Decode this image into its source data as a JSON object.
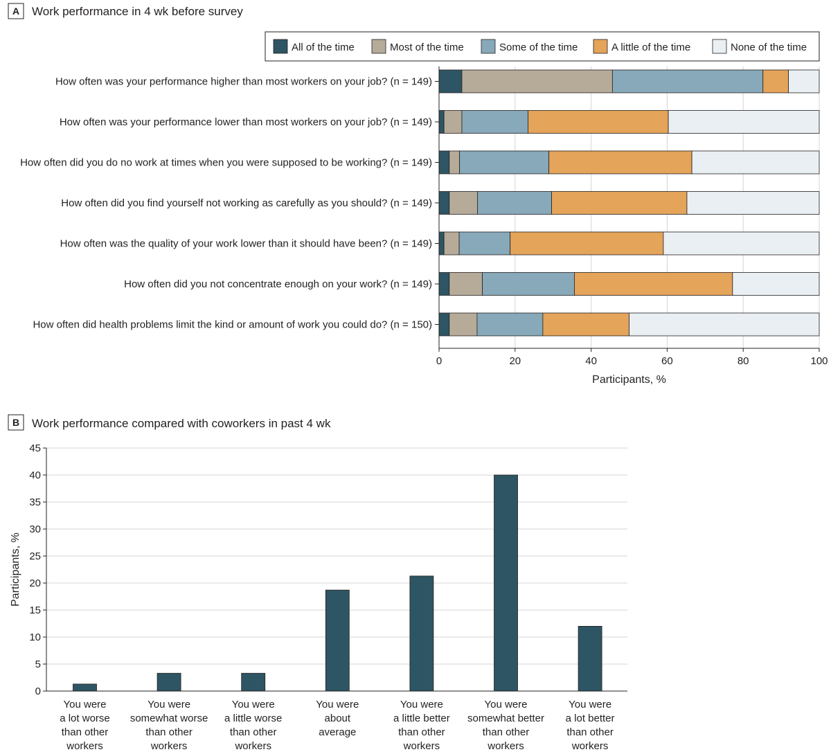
{
  "chart_data": [
    {
      "type": "bar",
      "orientation": "horizontal-stacked",
      "panel_letter": "A",
      "title": "Work performance in 4 wk before survey",
      "xlabel": "Participants, %",
      "xlim": [
        0,
        100
      ],
      "xticks": [
        "0",
        "20",
        "40",
        "60",
        "80",
        "100"
      ],
      "legend_position": "top-right",
      "categories": [
        "How often was your performance higher than most workers on your job? (n = 149)",
        "How often was your performance lower than most workers on your job? (n = 149)",
        "How often did you do no work at times when you were supposed to be working? (n = 149)",
        "How often did you find yourself not working as carefully as you should? (n = 149)",
        "How often was the quality of your work lower than it should have been? (n = 149)",
        "How often did you not concentrate enough on your work? (n = 149)",
        "How often did health problems limit the kind or amount of work you could do? (n = 150)"
      ],
      "series": [
        {
          "name": "All of the time",
          "color": "#2e5563",
          "values": [
            6.0,
            1.3,
            2.7,
            2.7,
            1.3,
            2.7,
            2.7
          ]
        },
        {
          "name": "Most of the time",
          "color": "#b6ab99",
          "values": [
            39.6,
            4.7,
            2.7,
            7.4,
            4.0,
            8.7,
            7.3
          ]
        },
        {
          "name": "Some of the time",
          "color": "#87a9b9",
          "values": [
            39.6,
            17.4,
            23.5,
            19.5,
            13.4,
            24.2,
            17.3
          ]
        },
        {
          "name": "A little of the time",
          "color": "#e4a45a",
          "values": [
            6.7,
            36.9,
            37.6,
            35.6,
            40.3,
            41.6,
            22.7
          ]
        },
        {
          "name": "None of the time",
          "color": "#e9eff3",
          "values": [
            8.1,
            39.7,
            33.5,
            34.8,
            41.0,
            22.8,
            50.0
          ]
        }
      ]
    },
    {
      "type": "bar",
      "panel_letter": "B",
      "title": "Work performance compared with coworkers in past 4 wk",
      "ylabel": "Participants, %",
      "ylim": [
        0,
        45
      ],
      "yticks": [
        "0",
        "5",
        "10",
        "15",
        "20",
        "25",
        "30",
        "35",
        "40",
        "45"
      ],
      "color": "#2e5563",
      "categories": [
        [
          "You were",
          "a lot worse",
          "than other",
          "workers"
        ],
        [
          "You were",
          "somewhat worse",
          "than other",
          "workers"
        ],
        [
          "You were",
          "a little worse",
          "than other",
          "workers"
        ],
        [
          "You were",
          "about",
          "average"
        ],
        [
          "You were",
          "a little better",
          "than other",
          "workers"
        ],
        [
          "You were",
          "somewhat better",
          "than other",
          "workers"
        ],
        [
          "You were",
          "a lot better",
          "than other",
          "workers"
        ]
      ],
      "values": [
        1.3,
        3.3,
        3.3,
        18.7,
        21.3,
        40.0,
        12.0
      ]
    }
  ]
}
